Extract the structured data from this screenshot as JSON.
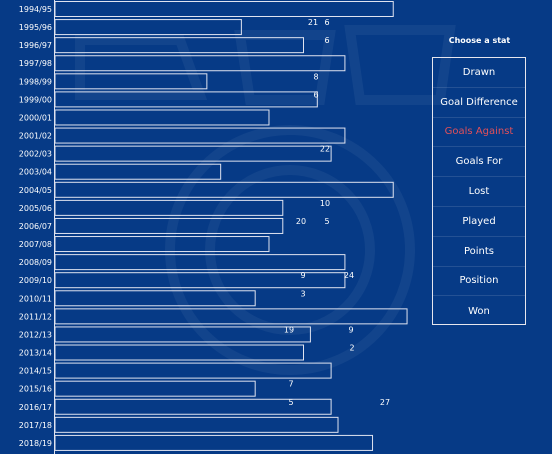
{
  "colors": {
    "background": "#063a86",
    "bar_stroke": "#dfe3f0",
    "text": "#ffffff",
    "selected": "#e0505a"
  },
  "chart_data": {
    "type": "bar",
    "orientation": "horizontal",
    "grid": false,
    "categories": [
      "1994/95",
      "1995/96",
      "1996/97",
      "1997/98",
      "1998/99",
      "1999/00",
      "2000/01",
      "2001/02",
      "2002/03",
      "2003/04",
      "2004/05",
      "2005/06",
      "2006/07",
      "2007/08",
      "2008/09",
      "2009/10",
      "2010/11",
      "2011/12",
      "2012/13",
      "2013/14",
      "2014/15",
      "2015/16",
      "2016/17",
      "2017/18",
      "2018/19"
    ],
    "values": [
      49,
      27,
      36,
      42,
      22,
      38,
      31,
      42,
      40,
      24,
      49,
      33,
      33,
      31,
      42,
      42,
      29,
      51,
      37,
      36,
      40,
      29,
      40,
      41,
      46
    ],
    "xlim": [
      0,
      72
    ],
    "scatter_labels": [
      {
        "row": 1,
        "values": [
          "21",
          "6"
        ]
      },
      {
        "row": 2,
        "values": [
          "6"
        ]
      },
      {
        "row": 4,
        "values": [
          "8"
        ]
      },
      {
        "row": 5,
        "values": [
          "6"
        ]
      },
      {
        "row": 8,
        "values": [
          "22"
        ]
      },
      {
        "row": 11,
        "values": [
          "10"
        ]
      },
      {
        "row": 12,
        "values": [
          "20",
          "5"
        ]
      },
      {
        "row": 15,
        "values": [
          "9",
          "24"
        ]
      },
      {
        "row": 16,
        "values": [
          "3"
        ]
      },
      {
        "row": 18,
        "values": [
          "19",
          "9"
        ]
      },
      {
        "row": 19,
        "values": [
          "2"
        ]
      },
      {
        "row": 21,
        "values": [
          "7"
        ]
      },
      {
        "row": 22,
        "values": [
          "5",
          "27"
        ]
      }
    ]
  },
  "stat_selector": {
    "title": "Choose a stat",
    "selected": "Goals Against",
    "options": [
      "Drawn",
      "Goal Difference",
      "Goals Against",
      "Goals For",
      "Lost",
      "Played",
      "Points",
      "Position",
      "Won"
    ]
  }
}
